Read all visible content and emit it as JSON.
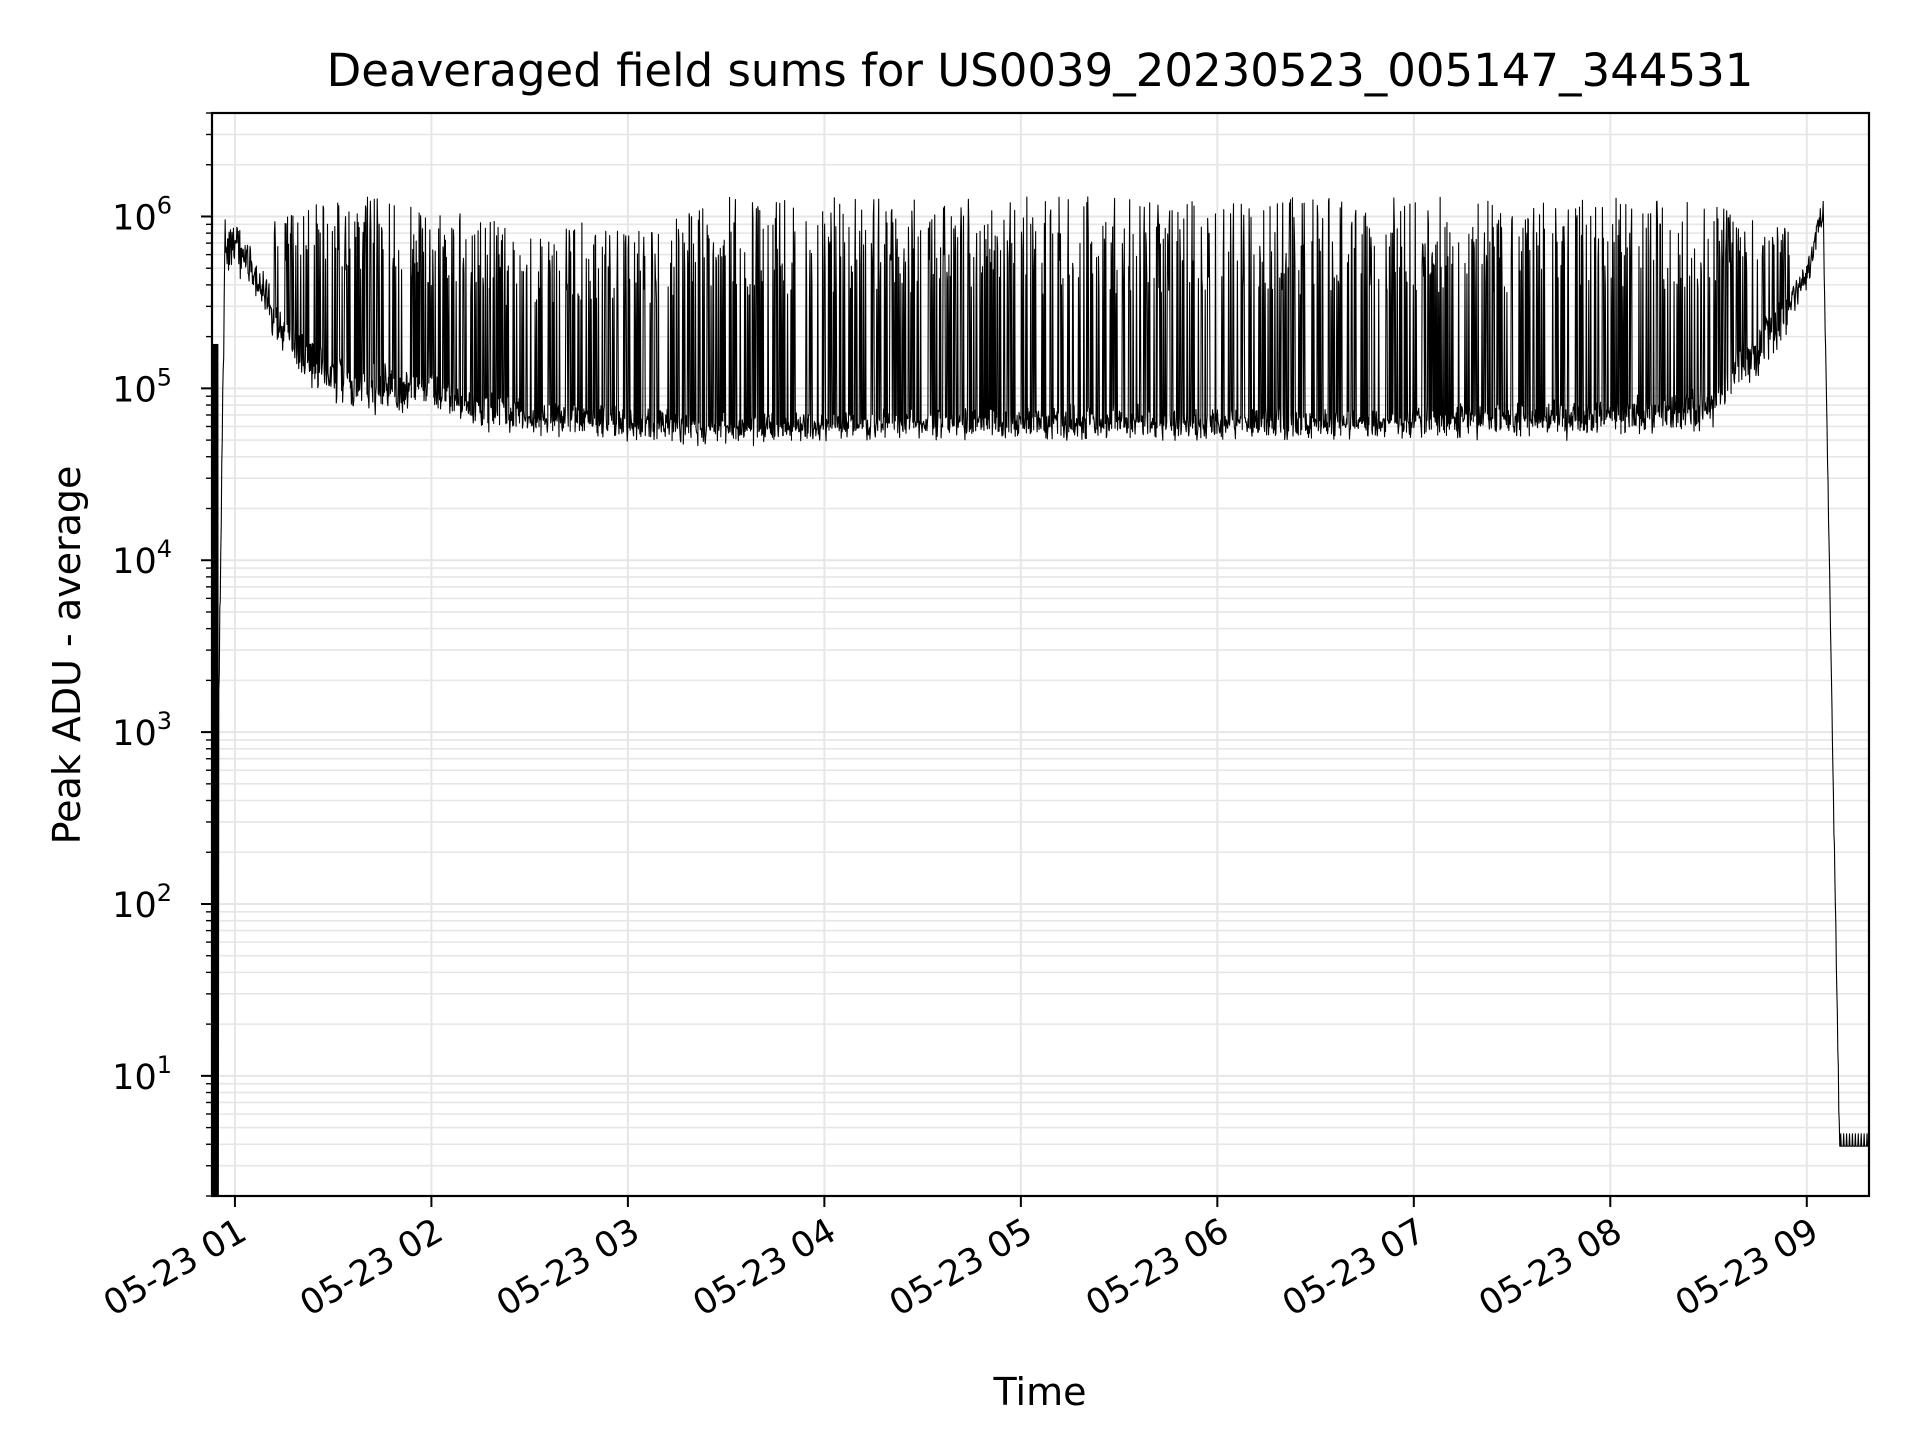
{
  "chart_data": {
    "type": "line",
    "title": "Deaveraged field sums for US0039_20230523_005147_344531",
    "xlabel": "Time",
    "ylabel": "Peak ADU - average",
    "y_scale": "log",
    "ylim": [
      2,
      4000000
    ],
    "xlim": [
      "05-23 00:53",
      "05-23 09:19"
    ],
    "grid": true,
    "grid_color": "#e6e6e6",
    "line_color": "#000000",
    "x_tick_labels": [
      "05-23 01",
      "05-23 02",
      "05-23 03",
      "05-23 04",
      "05-23 05",
      "05-23 06",
      "05-23 07",
      "05-23 08",
      "05-23 09"
    ],
    "y_tick_labels": [
      {
        "base": "10",
        "exp": "1"
      },
      {
        "base": "10",
        "exp": "2"
      },
      {
        "base": "10",
        "exp": "3"
      },
      {
        "base": "10",
        "exp": "4"
      },
      {
        "base": "10",
        "exp": "5"
      },
      {
        "base": "10",
        "exp": "6"
      }
    ],
    "series": [
      {
        "x": [
          "05-23 00:53",
          "05-23 00:57",
          "05-23 01:05",
          "05-23 01:15",
          "05-23 01:30",
          "05-23 01:45",
          "05-23 02:00",
          "05-23 02:15",
          "05-23 02:30",
          "05-23 02:45",
          "05-23 03:00",
          "05-23 03:30",
          "05-23 04:00",
          "05-23 04:30",
          "05-23 05:00",
          "05-23 05:30",
          "05-23 06:00",
          "05-23 06:30",
          "05-23 07:00",
          "05-23 07:30",
          "05-23 08:00",
          "05-23 08:30",
          "05-23 08:50",
          "05-23 09:00",
          "05-23 09:05",
          "05-23 09:10",
          "05-23 09:19"
        ],
        "upper": [
          180000,
          1000000,
          1200000,
          1000000,
          1300000,
          1300000,
          1100000,
          1000000,
          800000,
          1000000,
          800000,
          1300000,
          1300000,
          1300000,
          1300000,
          1300000,
          1300000,
          1300000,
          1300000,
          1300000,
          1300000,
          1200000,
          900000,
          800000,
          2000000,
          5,
          5
        ],
        "lower": [
          2,
          500000,
          400000,
          150000,
          80000,
          70000,
          80000,
          60000,
          55000,
          60000,
          55000,
          50000,
          55000,
          55000,
          55000,
          55000,
          55000,
          55000,
          55000,
          55000,
          55000,
          60000,
          150000,
          400000,
          1000000,
          4,
          4
        ],
        "baseline": [
          2,
          1100000,
          600000,
          250000,
          150000,
          130000,
          110000,
          90000,
          75000,
          75000,
          70000,
          65000,
          65000,
          68000,
          70000,
          72000,
          70000,
          68000,
          70000,
          75000,
          80000,
          90000,
          300000,
          500000,
          1200000,
          4,
          4
        ]
      }
    ]
  }
}
